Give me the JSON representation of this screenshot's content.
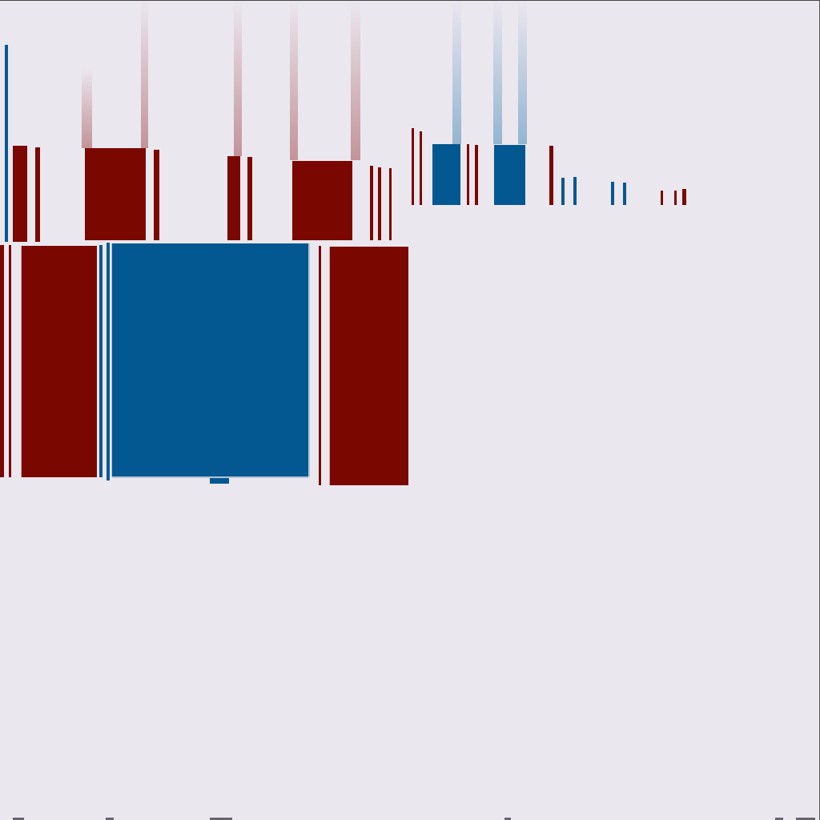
{
  "palette": {
    "background": "#ebe7ee",
    "red": "#7a0800",
    "blue": "#045891",
    "red_streak": "#c4a0a6",
    "blue_streak": "#9cbad3"
  }
}
